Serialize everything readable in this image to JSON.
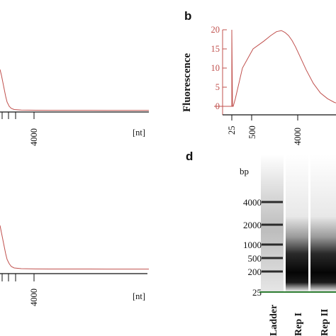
{
  "panels": [
    {
      "id": "a",
      "letter": "",
      "x_tick_labels": [
        "4000"
      ],
      "x_unit": "[nt]"
    },
    {
      "id": "b",
      "letter": "b",
      "y_label": "Fluorescence",
      "y_tick_labels": [
        "20",
        "15",
        "10",
        "5",
        "0"
      ],
      "x_tick_labels": [
        "25",
        "500",
        "4000"
      ]
    },
    {
      "id": "c",
      "letter": "",
      "x_tick_labels": [
        "4000"
      ],
      "x_unit": "[nt]"
    },
    {
      "id": "d",
      "letter": "d",
      "size_unit": "bp",
      "ladder_labels": [
        "4000",
        "2000",
        "1000",
        "500",
        "200",
        "25"
      ],
      "lane_labels": [
        "Ladder",
        "Rep I",
        "Rep II"
      ]
    }
  ],
  "chart_data": [
    {
      "type": "line",
      "panel": "a",
      "xlabel": "[nt]",
      "x_tick_labels": [
        "4000"
      ],
      "series": [
        {
          "color": "#c0504d",
          "x": [
            0,
            2,
            4,
            6,
            8,
            10,
            13,
            16,
            20,
            30,
            50,
            70,
            100,
            150,
            210
          ],
          "y": [
            58,
            50,
            40,
            30,
            20,
            12,
            6,
            3,
            1.5,
            0.8,
            0.5,
            0.4,
            0.4,
            0.3,
            0.3
          ]
        }
      ]
    },
    {
      "type": "line",
      "panel": "b",
      "ylabel": "Fluorescence",
      "ylim": [
        0,
        22
      ],
      "y_ticks": [
        0,
        5,
        10,
        15,
        20
      ],
      "x_tick_labels": [
        "25",
        "500",
        "4000"
      ],
      "series": [
        {
          "color": "#c0504d",
          "x": [
            0,
            25,
            25,
            26,
            27,
            30,
            40,
            55,
            70,
            80,
            88,
            95,
            100,
            105,
            110,
            115,
            120,
            130,
            140,
            150,
            160,
            170,
            180,
            200,
            230
          ],
          "y": [
            0,
            0,
            20,
            0,
            0,
            2,
            10,
            15,
            17,
            18.5,
            19.5,
            19.8,
            19.3,
            18.5,
            17.2,
            15.5,
            13.5,
            9.5,
            6,
            3.5,
            2,
            1,
            0.5,
            0.2,
            0.1
          ]
        }
      ]
    },
    {
      "type": "line",
      "panel": "c",
      "xlabel": "[nt]",
      "x_tick_labels": [
        "4000"
      ],
      "series": [
        {
          "color": "#c0504d",
          "x": [
            0,
            2,
            4,
            6,
            8,
            10,
            13,
            16,
            20,
            30,
            50,
            70,
            100,
            150,
            210
          ],
          "y": [
            62,
            52,
            42,
            32,
            22,
            14,
            8,
            4,
            2,
            1,
            0.6,
            0.5,
            0.5,
            0.4,
            0.4
          ]
        }
      ]
    },
    {
      "type": "table",
      "panel": "d",
      "size_unit": "bp",
      "lanes": [
        "Ladder",
        "Rep I",
        "Rep II"
      ],
      "ladder_bands_bp": [
        4000,
        2000,
        1000,
        500,
        200,
        25
      ]
    }
  ]
}
